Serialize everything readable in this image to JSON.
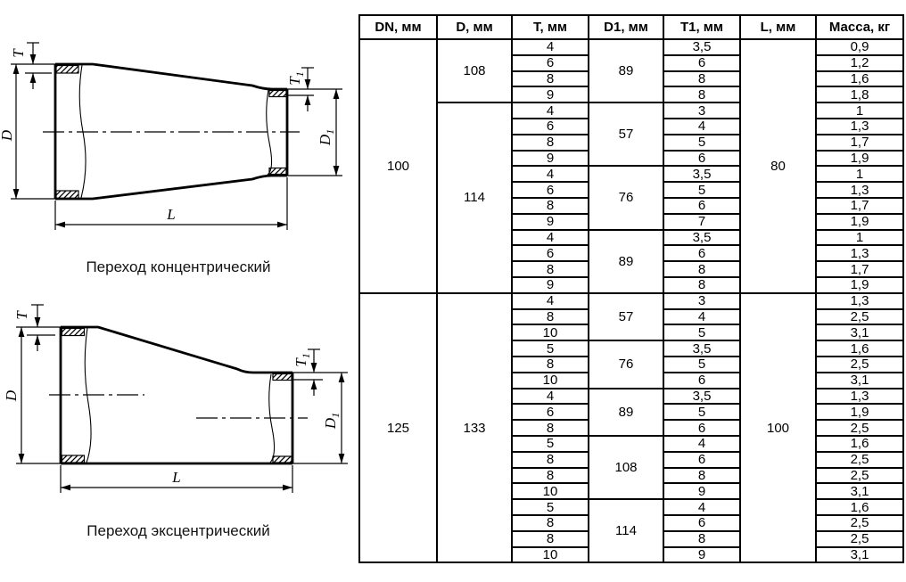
{
  "diagrams": {
    "concentric": {
      "caption": "Переход концентрический",
      "labels": {
        "t": "T",
        "d": "D",
        "t1": {
          "main": "T",
          "sub": "1"
        },
        "d1": {
          "main": "D",
          "sub": "1"
        },
        "l": "L"
      }
    },
    "eccentric": {
      "caption": "Переход эксцентрический",
      "labels": {
        "t": "T",
        "d": "D",
        "t1": {
          "main": "T",
          "sub": "1"
        },
        "d1": {
          "main": "D",
          "sub": "1"
        },
        "l": "L"
      }
    }
  },
  "table": {
    "headers": [
      "DN, мм",
      "D, мм",
      "T, мм",
      "D1, мм",
      "T1, мм",
      "L, мм",
      "Масса, кг"
    ],
    "sections": [
      {
        "dn": "100",
        "l": "80",
        "d_groups": [
          {
            "d": "108",
            "d1_groups": [
              {
                "d1": "89",
                "rows": [
                  [
                    "4",
                    "3,5",
                    "0,9"
                  ],
                  [
                    "6",
                    "6",
                    "1,2"
                  ],
                  [
                    "8",
                    "8",
                    "1,6"
                  ],
                  [
                    "9",
                    "8",
                    "1,8"
                  ]
                ]
              }
            ]
          },
          {
            "d": "114",
            "d1_groups": [
              {
                "d1": "57",
                "rows": [
                  [
                    "4",
                    "3",
                    "1"
                  ],
                  [
                    "6",
                    "4",
                    "1,3"
                  ],
                  [
                    "8",
                    "5",
                    "1,7"
                  ],
                  [
                    "9",
                    "6",
                    "1,9"
                  ]
                ]
              },
              {
                "d1": "76",
                "rows": [
                  [
                    "4",
                    "3,5",
                    "1"
                  ],
                  [
                    "6",
                    "5",
                    "1,3"
                  ],
                  [
                    "8",
                    "6",
                    "1,7"
                  ],
                  [
                    "9",
                    "7",
                    "1,9"
                  ]
                ]
              },
              {
                "d1": "89",
                "rows": [
                  [
                    "4",
                    "3,5",
                    "1"
                  ],
                  [
                    "6",
                    "6",
                    "1,3"
                  ],
                  [
                    "8",
                    "8",
                    "1,7"
                  ],
                  [
                    "9",
                    "8",
                    "1,9"
                  ]
                ]
              }
            ]
          }
        ]
      },
      {
        "dn": "125",
        "l": "100",
        "d_groups": [
          {
            "d": "133",
            "d1_groups": [
              {
                "d1": "57",
                "rows": [
                  [
                    "4",
                    "3",
                    "1,3"
                  ],
                  [
                    "8",
                    "4",
                    "2,5"
                  ],
                  [
                    "10",
                    "5",
                    "3,1"
                  ]
                ]
              },
              {
                "d1": "76",
                "rows": [
                  [
                    "5",
                    "3,5",
                    "1,6"
                  ],
                  [
                    "8",
                    "5",
                    "2,5"
                  ],
                  [
                    "10",
                    "6",
                    "3,1"
                  ]
                ]
              },
              {
                "d1": "89",
                "rows": [
                  [
                    "4",
                    "3,5",
                    "1,3"
                  ],
                  [
                    "6",
                    "5",
                    "1,9"
                  ],
                  [
                    "8",
                    "6",
                    "2,5"
                  ]
                ]
              },
              {
                "d1": "108",
                "rows": [
                  [
                    "5",
                    "4",
                    "1,6"
                  ],
                  [
                    "8",
                    "6",
                    "2,5"
                  ],
                  [
                    "8",
                    "8",
                    "2,5"
                  ],
                  [
                    "10",
                    "9",
                    "3,1"
                  ]
                ]
              },
              {
                "d1": "114",
                "rows": [
                  [
                    "5",
                    "4",
                    "1,6"
                  ],
                  [
                    "8",
                    "6",
                    "2,5"
                  ],
                  [
                    "8",
                    "8",
                    "2,5"
                  ],
                  [
                    "10",
                    "9",
                    "3,1"
                  ]
                ]
              }
            ]
          }
        ]
      }
    ]
  }
}
